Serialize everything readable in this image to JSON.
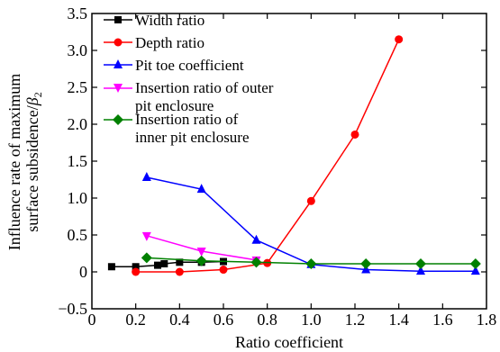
{
  "chart_data": {
    "type": "line",
    "xlabel": "Ratio coefficient",
    "ylabel_line1": "Influence rate of maximum",
    "ylabel_line2": "surface subsidence/",
    "ylabel_symbol": "β",
    "ylabel_subscript": "2",
    "xlim": [
      0,
      1.8
    ],
    "ylim": [
      -0.5,
      3.5
    ],
    "xticks": [
      "0",
      "0.2",
      "0.4",
      "0.6",
      "0.8",
      "1.0",
      "1.2",
      "1.4",
      "1.6",
      "1.8"
    ],
    "yticks": [
      "−0.5",
      "0",
      "0.5",
      "1.0",
      "1.5",
      "2.0",
      "2.5",
      "3.0",
      "3.5"
    ],
    "legend_position": "top-left",
    "series": [
      {
        "name": "Width ratio",
        "color": "#000000",
        "marker": "square",
        "x": [
          0.09,
          0.2,
          0.3,
          0.33,
          0.4,
          0.5,
          0.6
        ],
        "y": [
          0.07,
          0.07,
          0.09,
          0.11,
          0.13,
          0.13,
          0.14
        ]
      },
      {
        "name": "Depth ratio",
        "color": "#ff0000",
        "marker": "circle",
        "x": [
          0.2,
          0.4,
          0.6,
          0.8,
          1.0,
          1.2,
          1.4
        ],
        "y": [
          0.0,
          0.0,
          0.03,
          0.12,
          0.96,
          1.86,
          3.15
        ]
      },
      {
        "name": "Pit toe coefficient",
        "color": "#0000ff",
        "marker": "triangle-up",
        "x": [
          0.25,
          0.5,
          0.75,
          1.0,
          1.25,
          1.5,
          1.75
        ],
        "y": [
          1.28,
          1.12,
          0.43,
          0.1,
          0.03,
          0.01,
          0.01
        ]
      },
      {
        "name_line1": "Insertion ratio of outer",
        "name_line2": "pit enclosure",
        "color": "#ff00ff",
        "marker": "triangle-down",
        "x": [
          0.25,
          0.5,
          0.75
        ],
        "y": [
          0.49,
          0.28,
          0.16
        ]
      },
      {
        "name_line1": "Insertion ratio of",
        "name_line2": "inner pit enclosure",
        "color": "#008000",
        "marker": "diamond",
        "x": [
          0.25,
          0.5,
          0.75,
          1.0,
          1.25,
          1.5,
          1.75
        ],
        "y": [
          0.19,
          0.15,
          0.13,
          0.11,
          0.11,
          0.11,
          0.11
        ]
      }
    ]
  }
}
